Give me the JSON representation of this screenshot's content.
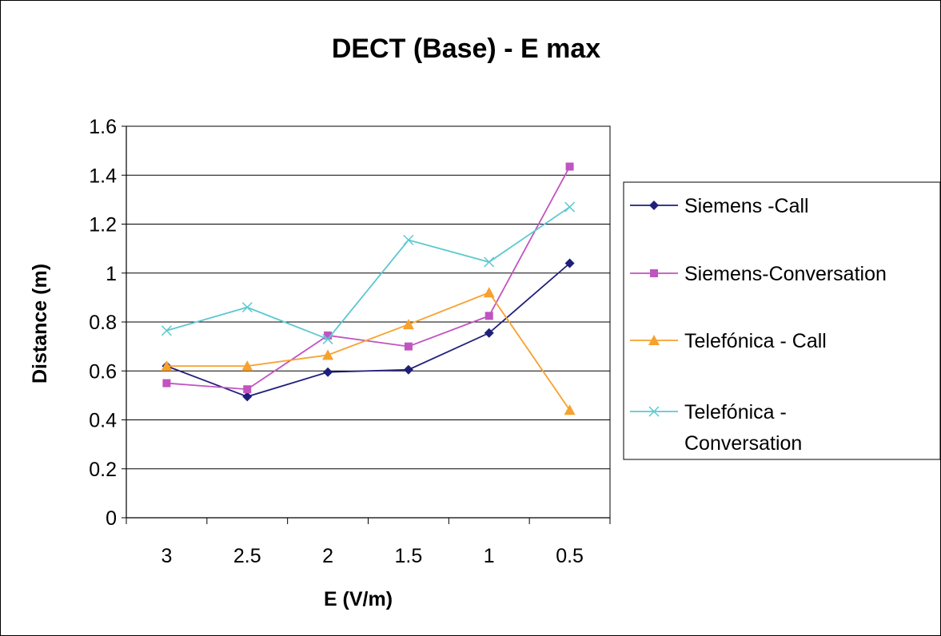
{
  "chart_data": {
    "type": "line",
    "title": "DECT (Base) - E max",
    "xlabel": "E (V/m)",
    "ylabel": "Distance (m)",
    "categories": [
      "3",
      "2.5",
      "2",
      "1.5",
      "1",
      "0.5"
    ],
    "ylim": [
      0,
      1.6
    ],
    "yticks": [
      "0",
      "0.2",
      "0.4",
      "0.6",
      "0.8",
      "1",
      "1.2",
      "1.4",
      "1.6"
    ],
    "grid": true,
    "legend_position": "right",
    "series": [
      {
        "name": "Siemens -Call",
        "legend_lines": [
          "Siemens -Call"
        ],
        "color": "#1f1f7a",
        "marker": "diamond",
        "values": [
          0.62,
          0.495,
          0.595,
          0.605,
          0.755,
          1.04
        ]
      },
      {
        "name": "Siemens-Conversation",
        "legend_lines": [
          "Siemens-Conversation"
        ],
        "color": "#c154c1",
        "marker": "square",
        "values": [
          0.55,
          0.525,
          0.745,
          0.7,
          0.825,
          1.435
        ]
      },
      {
        "name": "Telefónica - Call",
        "legend_lines": [
          "Telefónica - Call"
        ],
        "color": "#f7a12e",
        "marker": "triangle",
        "values": [
          0.62,
          0.62,
          0.665,
          0.79,
          0.92,
          0.44
        ]
      },
      {
        "name": "Telefónica - Conversation",
        "legend_lines": [
          "Telefónica -",
          "Conversation"
        ],
        "color": "#5cc8d0",
        "marker": "x",
        "values": [
          0.765,
          0.86,
          0.73,
          1.135,
          1.045,
          1.27
        ]
      }
    ]
  }
}
